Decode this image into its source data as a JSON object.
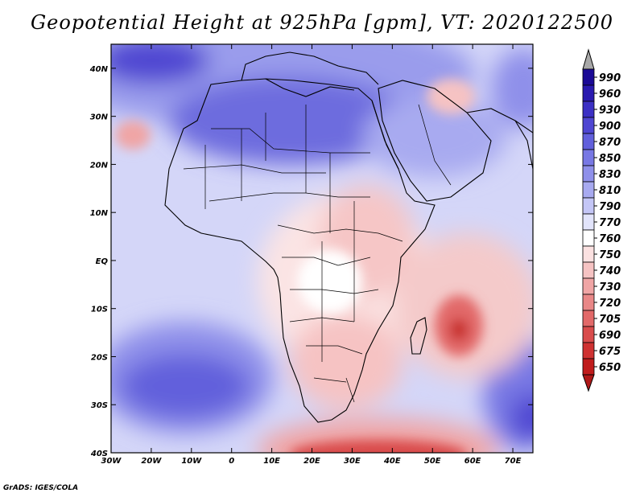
{
  "title": "Geopotential Height at 925hPa [gpm], VT: 2020122500",
  "credit": "GrADS: IGES/COLA",
  "map": {
    "lon_ticks": [
      "30W",
      "20W",
      "10W",
      "0",
      "10E",
      "20E",
      "30E",
      "40E",
      "50E",
      "60E",
      "70E"
    ],
    "lat_ticks": [
      "40N",
      "30N",
      "20N",
      "10N",
      "EQ",
      "10S",
      "20S",
      "30S",
      "40S"
    ],
    "lon_range": [
      -30,
      75
    ],
    "lat_range": [
      -40,
      45
    ]
  },
  "colorbar": {
    "levels": [
      "990",
      "960",
      "930",
      "900",
      "870",
      "850",
      "830",
      "810",
      "790",
      "770",
      "760",
      "750",
      "740",
      "730",
      "720",
      "705",
      "690",
      "675",
      "650"
    ],
    "colors": [
      "#1b0a96",
      "#2a1ab0",
      "#3c30c4",
      "#4f46d2",
      "#6260dc",
      "#7878e4",
      "#8f90ea",
      "#a8aaf0",
      "#c4c6f6",
      "#e2e4fb",
      "#ffffff",
      "#fbe1e1",
      "#f6c3c3",
      "#f0a5a5",
      "#e98787",
      "#e26969",
      "#d94c4c",
      "#cf3232",
      "#c01c1c"
    ],
    "top_arrow_color": "#a8a8a8",
    "bottom_arrow_color": "#b01818"
  }
}
